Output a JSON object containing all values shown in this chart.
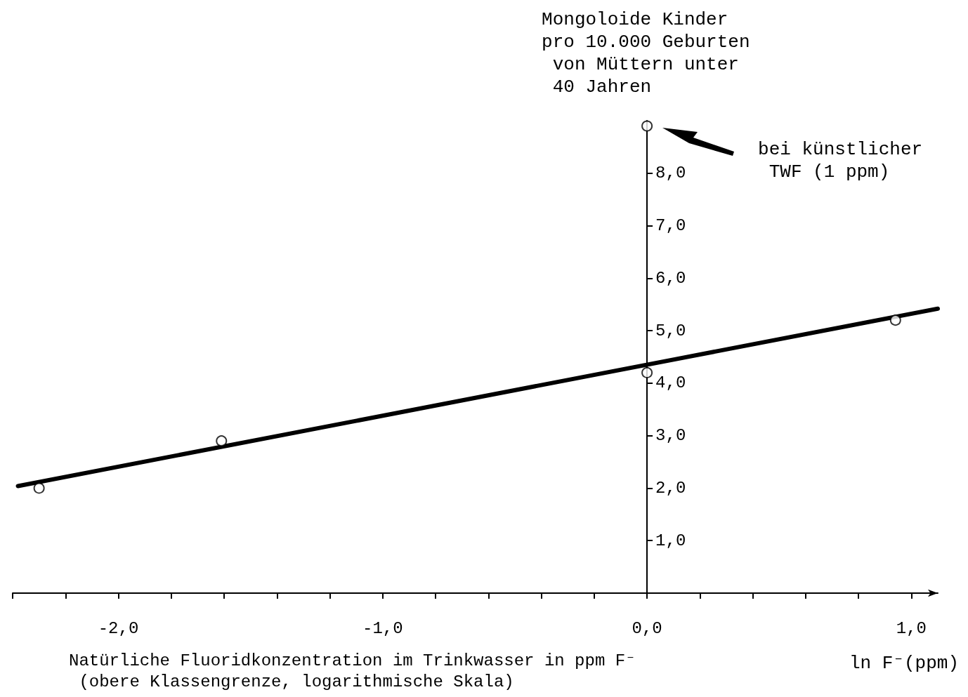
{
  "chart_data": {
    "type": "scatter",
    "ylabel": "Mongoloide Kinder pro 10.000 Geburten von Müttern unter 40 Jahren",
    "xlabel": "Natürliche Fluoridkonzentration im Trinkwasser in ppm F⁻ (obere Klassengrenze, logarithmische Skala)",
    "annotations": [
      "ln F⁻(ppm)",
      "bei künstlicher TWF (1 ppm)"
    ],
    "xlim": [
      -2.4,
      1.1
    ],
    "xticks": [
      {
        "value": -2.4,
        "label": null
      },
      {
        "value": -2.2,
        "label": null
      },
      {
        "value": -2.0,
        "label": "-2,0"
      },
      {
        "value": -1.8,
        "label": null
      },
      {
        "value": -1.6,
        "label": null
      },
      {
        "value": -1.4,
        "label": null
      },
      {
        "value": -1.2,
        "label": null
      },
      {
        "value": -1.0,
        "label": "-1,0"
      },
      {
        "value": -0.8,
        "label": null
      },
      {
        "value": -0.6,
        "label": null
      },
      {
        "value": -0.4,
        "label": null
      },
      {
        "value": -0.2,
        "label": null
      },
      {
        "value": 0,
        "label": "0,0"
      },
      {
        "value": 0.2,
        "label": null
      },
      {
        "value": 0.4,
        "label": null
      },
      {
        "value": 0.6,
        "label": null
      },
      {
        "value": 0.8,
        "label": null
      },
      {
        "value": 1.0,
        "label": "1,0"
      }
    ],
    "ylim": [
      0,
      9
    ],
    "yticks": [
      {
        "value": 1,
        "label": "1,0"
      },
      {
        "value": 2,
        "label": "2,0"
      },
      {
        "value": 3,
        "label": "3,0"
      },
      {
        "value": 4,
        "label": "4,0"
      },
      {
        "value": 5,
        "label": "5,0"
      },
      {
        "value": 6,
        "label": "6,0"
      },
      {
        "value": 7,
        "label": "7,0"
      },
      {
        "value": 8,
        "label": "8,0"
      }
    ],
    "grid": false,
    "series": [
      {
        "type": "scatter",
        "color": "#000000",
        "marker": "circle",
        "x": [
          -2.3,
          -1.61,
          0,
          0,
          0.94
        ],
        "values": [
          2.0,
          2.9,
          4.2,
          8.9,
          5.2
        ]
      },
      {
        "type": "line",
        "color": "#000000",
        "marker": "none",
        "line_style": "solid",
        "x": [
          -2.38,
          1.1
        ],
        "values": [
          2.04,
          5.42
        ]
      }
    ]
  }
}
